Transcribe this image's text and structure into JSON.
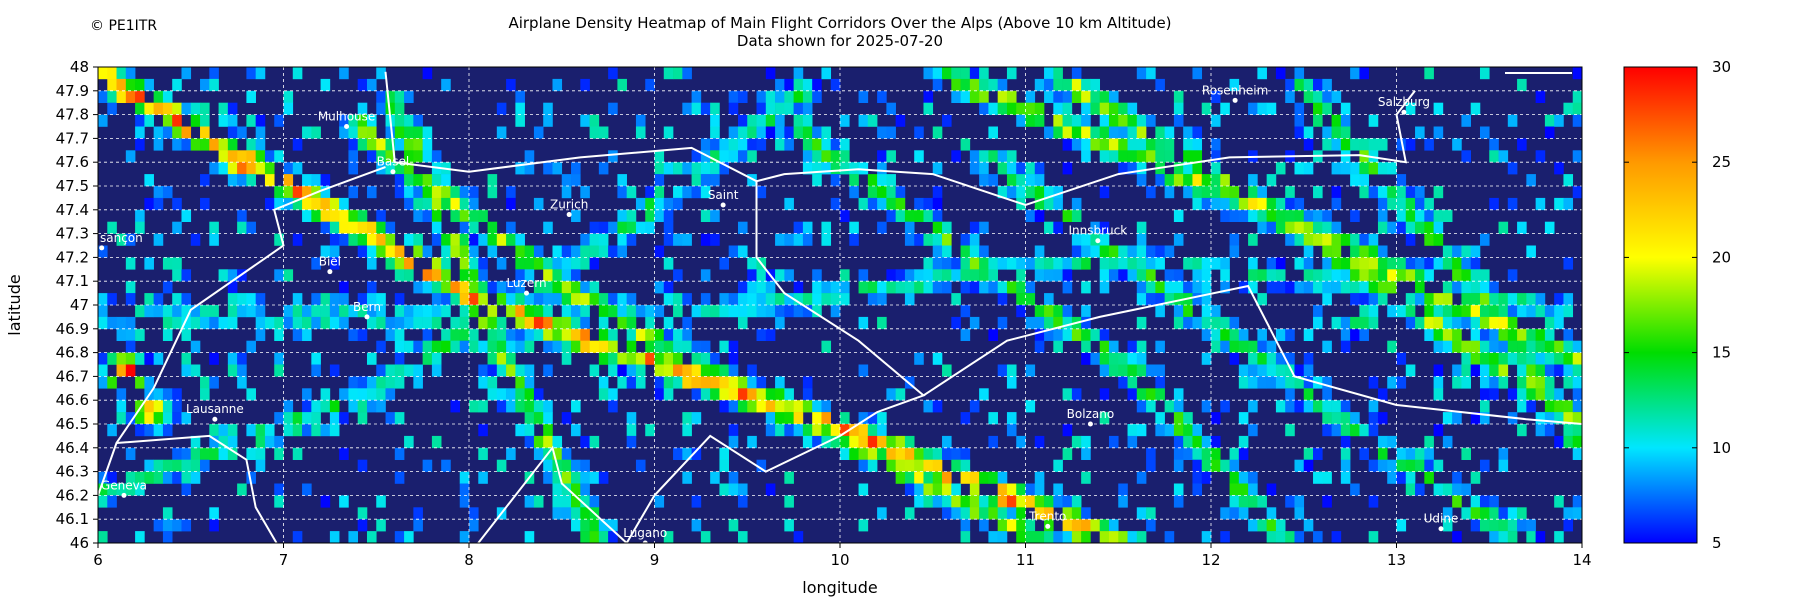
{
  "header": {
    "copyright": "© PE1ITR",
    "title": "Airplane Density Heatmap of Main Flight Corridors Over the Alps (Above 10 km Altitude)",
    "subtitle": "Data shown for 2025-07-20"
  },
  "colors": {
    "background": "#1a1f6e",
    "border_lines": "#ffffff",
    "grid": "#ffffff"
  },
  "chart_data": {
    "type": "heatmap",
    "xlabel": "longitude",
    "ylabel": "latitude",
    "xlim": [
      6,
      14
    ],
    "ylim": [
      46,
      48
    ],
    "x_ticks": [
      "6",
      "7",
      "8",
      "9",
      "10",
      "11",
      "12",
      "13",
      "14"
    ],
    "y_ticks": [
      "46",
      "46.1",
      "46.2",
      "46.3",
      "46.4",
      "46.5",
      "46.6",
      "46.7",
      "46.8",
      "46.9",
      "47",
      "47.1",
      "47.2",
      "47.3",
      "47.4",
      "47.5",
      "47.6",
      "47.7",
      "47.8",
      "47.9",
      "48"
    ],
    "grid": true,
    "colorbar": {
      "min": 5,
      "max": 30,
      "ticks": [
        "5",
        "10",
        "15",
        "20",
        "25",
        "30"
      ]
    },
    "corridors": [
      {
        "points": [
          [
            6.05,
            47.95
          ],
          [
            8.1,
            47.0
          ],
          [
            10.05,
            46.47
          ],
          [
            11.5,
            46.0
          ]
        ],
        "density": 24
      },
      {
        "points": [
          [
            7.4,
            47.75
          ],
          [
            8.45,
            47.1
          ],
          [
            9.1,
            46.8
          ],
          [
            11.1,
            46.0
          ]
        ],
        "density": 17
      },
      {
        "points": [
          [
            7.6,
            47.85
          ],
          [
            8.2,
            46.75
          ],
          [
            8.7,
            46.0
          ]
        ],
        "density": 16
      },
      {
        "points": [
          [
            10.6,
            47.95
          ],
          [
            12.3,
            47.4
          ],
          [
            14.0,
            46.75
          ]
        ],
        "density": 18
      },
      {
        "points": [
          [
            11.2,
            47.95
          ],
          [
            12.5,
            47.3
          ],
          [
            14.0,
            46.5
          ]
        ],
        "density": 17
      },
      {
        "points": [
          [
            9.8,
            47.7
          ],
          [
            11.6,
            46.7
          ],
          [
            12.4,
            46.0
          ]
        ],
        "density": 15
      },
      {
        "points": [
          [
            6.0,
            46.2
          ],
          [
            7.4,
            46.6
          ],
          [
            8.8,
            47.3
          ],
          [
            9.8,
            47.9
          ]
        ],
        "density": 13
      },
      {
        "points": [
          [
            10.8,
            47.6
          ],
          [
            11.7,
            47.1
          ],
          [
            12.9,
            46.4
          ],
          [
            13.7,
            46.0
          ]
        ],
        "density": 14
      },
      {
        "points": [
          [
            6.0,
            46.95
          ],
          [
            9.0,
            46.95
          ],
          [
            11.5,
            47.2
          ],
          [
            13.8,
            47.0
          ]
        ],
        "density": 12
      },
      {
        "points": [
          [
            12.5,
            47.9
          ],
          [
            13.6,
            46.9
          ],
          [
            14.0,
            46.4
          ]
        ],
        "density": 15
      }
    ],
    "hotspots": [
      {
        "lon": 6.8,
        "lat": 47.6,
        "density": 26
      },
      {
        "lon": 6.15,
        "lat": 46.72,
        "density": 29
      },
      {
        "lon": 6.3,
        "lat": 46.55,
        "density": 22
      },
      {
        "lon": 12.8,
        "lat": 46.95,
        "density": 16
      }
    ],
    "cities": [
      {
        "name": "Mulhouse",
        "lon": 7.34,
        "lat": 47.75
      },
      {
        "name": "Basel",
        "lon": 7.59,
        "lat": 47.56
      },
      {
        "name": "Zurich",
        "lon": 8.54,
        "lat": 47.38
      },
      {
        "name": "Saint",
        "lon": 9.37,
        "lat": 47.42
      },
      {
        "name": "Rosenheim",
        "lon": 12.13,
        "lat": 47.86
      },
      {
        "name": "Salzburg",
        "lon": 13.04,
        "lat": 47.81
      },
      {
        "name": "Besançon",
        "label": "sançon",
        "lon": 6.02,
        "lat": 47.24
      },
      {
        "name": "Biel",
        "lon": 7.25,
        "lat": 47.14
      },
      {
        "name": "Luzern",
        "lon": 8.31,
        "lat": 47.05
      },
      {
        "name": "Bern",
        "lon": 7.45,
        "lat": 46.95
      },
      {
        "name": "Innsbruck",
        "lon": 11.39,
        "lat": 47.27
      },
      {
        "name": "Lausanne",
        "lon": 6.63,
        "lat": 46.52
      },
      {
        "name": "Bolzano",
        "lon": 11.35,
        "lat": 46.5
      },
      {
        "name": "Geneva",
        "lon": 6.14,
        "lat": 46.2
      },
      {
        "name": "Trento",
        "lon": 11.12,
        "lat": 46.07
      },
      {
        "name": "Udine",
        "lon": 13.24,
        "lat": 46.06
      },
      {
        "name": "Lugano",
        "lon": 8.95,
        "lat": 46.0
      }
    ],
    "borders": [
      [
        [
          7.55,
          47.98
        ],
        [
          7.6,
          47.6
        ],
        [
          8.0,
          47.56
        ],
        [
          8.6,
          47.62
        ],
        [
          9.2,
          47.66
        ],
        [
          9.55,
          47.52
        ],
        [
          9.7,
          47.55
        ],
        [
          10.1,
          47.57
        ],
        [
          10.5,
          47.55
        ],
        [
          11.0,
          47.42
        ],
        [
          11.5,
          47.55
        ],
        [
          12.1,
          47.62
        ],
        [
          12.8,
          47.63
        ],
        [
          13.05,
          47.6
        ],
        [
          13.0,
          47.8
        ],
        [
          13.1,
          47.9
        ]
      ],
      [
        [
          7.55,
          47.58
        ],
        [
          7.2,
          47.48
        ],
        [
          6.95,
          47.4
        ],
        [
          7.0,
          47.25
        ],
        [
          6.5,
          46.98
        ],
        [
          6.3,
          46.65
        ],
        [
          6.1,
          46.42
        ],
        [
          6.0,
          46.2
        ]
      ],
      [
        [
          6.1,
          46.42
        ],
        [
          6.6,
          46.45
        ],
        [
          6.8,
          46.35
        ],
        [
          6.85,
          46.15
        ],
        [
          7.0,
          45.95
        ]
      ],
      [
        [
          9.55,
          47.52
        ],
        [
          9.55,
          47.2
        ],
        [
          9.7,
          47.05
        ],
        [
          10.1,
          46.85
        ],
        [
          10.45,
          46.62
        ],
        [
          10.2,
          46.55
        ],
        [
          10.0,
          46.45
        ],
        [
          9.6,
          46.3
        ],
        [
          9.3,
          46.45
        ],
        [
          9.0,
          46.2
        ],
        [
          8.85,
          46.0
        ]
      ],
      [
        [
          10.45,
          46.62
        ],
        [
          10.9,
          46.85
        ],
        [
          11.4,
          46.95
        ],
        [
          12.2,
          47.08
        ],
        [
          12.45,
          46.7
        ],
        [
          13.0,
          46.58
        ],
        [
          13.7,
          46.52
        ],
        [
          14.0,
          46.5
        ]
      ],
      [
        [
          8.85,
          46.0
        ],
        [
          8.5,
          46.25
        ],
        [
          8.45,
          46.4
        ],
        [
          8.15,
          46.1
        ],
        [
          8.0,
          45.95
        ]
      ]
    ],
    "scale_bar": true
  }
}
